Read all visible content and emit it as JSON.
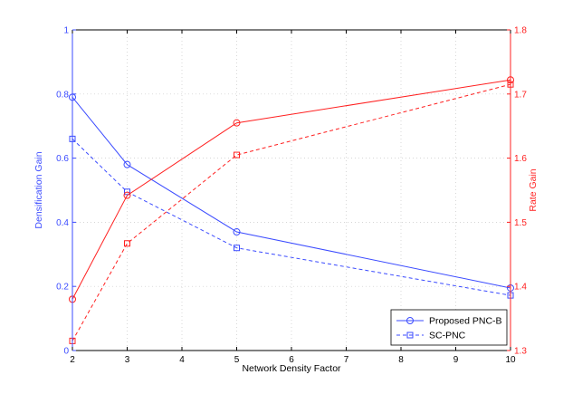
{
  "chart_data": {
    "type": "line",
    "xlabel": "Network Density Factor",
    "ylabel_left": "Densification Gain",
    "ylabel_right": "Rate Gain",
    "xlim": [
      2,
      10
    ],
    "ylim_left": [
      0,
      1
    ],
    "ylim_right": [
      1.3,
      1.8
    ],
    "x_ticks": [
      2,
      3,
      4,
      5,
      6,
      7,
      8,
      9,
      10
    ],
    "y_ticks_left": [
      0,
      0.2,
      0.4,
      0.6,
      0.8,
      1
    ],
    "y_ticks_left_labels": [
      "0",
      "0.2",
      "0.4",
      "0.6",
      "0.8",
      "1"
    ],
    "y_ticks_right": [
      1.3,
      1.4,
      1.5,
      1.6,
      1.7,
      1.8
    ],
    "y_ticks_right_labels": [
      "1.3",
      "1.4",
      "1.5",
      "1.6",
      "1.7",
      "1.8"
    ],
    "grid": true,
    "legend_position": "bottom-right",
    "left_color": "#3b4bff",
    "right_color": "#ff2020",
    "series": [
      {
        "name": "Proposed PNC-B",
        "axis": "left",
        "style": "solid",
        "marker": "circle",
        "color": "#3b4bff",
        "x": [
          2,
          3,
          5,
          10
        ],
        "y": [
          0.79,
          0.58,
          0.37,
          0.195
        ]
      },
      {
        "name": "SC-PNC",
        "axis": "left",
        "style": "dashed",
        "marker": "square",
        "color": "#3b4bff",
        "x": [
          2,
          3,
          5,
          10
        ],
        "y": [
          0.66,
          0.495,
          0.32,
          0.172
        ]
      },
      {
        "name": "Proposed PNC-B",
        "axis": "right",
        "style": "solid",
        "marker": "circle",
        "color": "#ff2020",
        "x": [
          2,
          3,
          5,
          10
        ],
        "y": [
          1.38,
          1.542,
          1.655,
          1.722
        ]
      },
      {
        "name": "SC-PNC",
        "axis": "right",
        "style": "dashed",
        "marker": "square",
        "color": "#ff2020",
        "x": [
          2,
          3,
          5,
          10
        ],
        "y": [
          1.315,
          1.467,
          1.605,
          1.715
        ]
      }
    ],
    "legend": [
      {
        "label": "Proposed PNC-B",
        "style": "solid",
        "marker": "circle"
      },
      {
        "label": "SC-PNC",
        "style": "dashed",
        "marker": "square"
      }
    ]
  }
}
